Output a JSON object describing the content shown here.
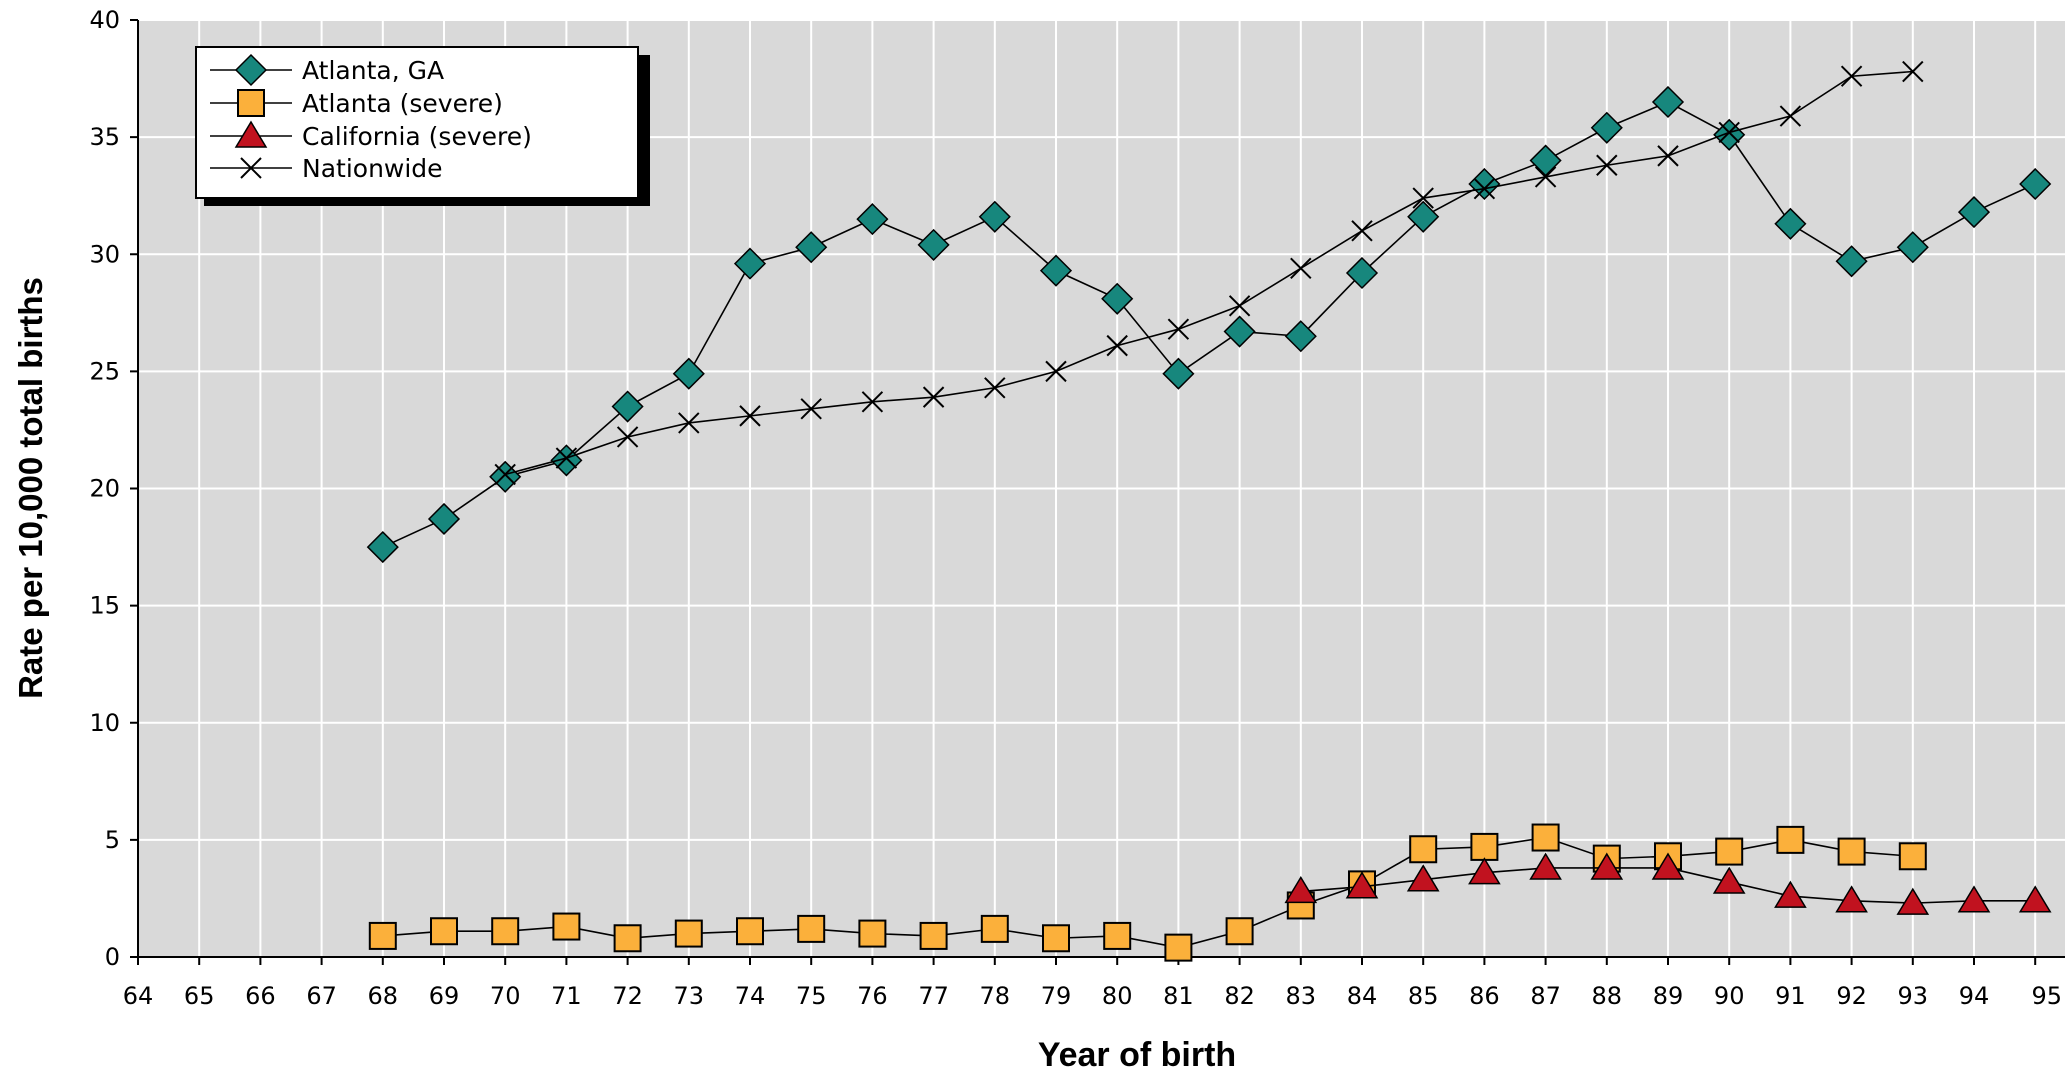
{
  "chart_data": {
    "type": "line",
    "title": "",
    "xlabel": "Year of birth",
    "ylabel": "Rate per 10,000 total births",
    "x_ticks": [
      "64",
      "65",
      "66",
      "67",
      "68",
      "69",
      "70",
      "71",
      "72",
      "73",
      "74",
      "75",
      "76",
      "77",
      "78",
      "79",
      "80",
      "81",
      "82",
      "83",
      "84",
      "85",
      "86",
      "87",
      "88",
      "89",
      "90",
      "91",
      "92",
      "93",
      "94",
      "95"
    ],
    "y_ticks": [
      "0",
      "5",
      "10",
      "15",
      "20",
      "25",
      "30",
      "35",
      "40"
    ],
    "xlim": [
      64,
      95
    ],
    "ylim": [
      0,
      40
    ],
    "grid": true,
    "legend_position": "top-left",
    "series": [
      {
        "name": "Atlanta, GA",
        "marker": "diamond",
        "color": "#17877d",
        "x": [
          68,
          69,
          70,
          71,
          72,
          73,
          74,
          75,
          76,
          77,
          78,
          79,
          80,
          81,
          82,
          83,
          84,
          85,
          86,
          87,
          88,
          89,
          90,
          91,
          92,
          93,
          94,
          95
        ],
        "y": [
          17.5,
          18.7,
          20.5,
          21.2,
          23.5,
          24.9,
          29.6,
          30.3,
          31.5,
          30.4,
          31.6,
          29.3,
          28.1,
          24.9,
          26.7,
          26.5,
          29.2,
          31.6,
          33.0,
          34.0,
          35.4,
          36.5,
          35.1,
          31.3,
          29.7,
          30.3,
          31.8,
          33.0
        ]
      },
      {
        "name": "Atlanta (severe)",
        "marker": "square",
        "color": "#fbb03b",
        "x": [
          68,
          69,
          70,
          71,
          72,
          73,
          74,
          75,
          76,
          77,
          78,
          79,
          80,
          81,
          82,
          83,
          84,
          85,
          86,
          87,
          88,
          89,
          90,
          91,
          92,
          93
        ],
        "y": [
          0.9,
          1.1,
          1.1,
          1.3,
          0.8,
          1.0,
          1.1,
          1.2,
          1.0,
          0.9,
          1.2,
          0.8,
          0.9,
          0.4,
          1.1,
          2.2,
          3.1,
          4.6,
          4.7,
          5.1,
          4.2,
          4.3,
          4.5,
          5.0,
          4.5,
          4.3
        ]
      },
      {
        "name": "California (severe)",
        "marker": "triangle",
        "color": "#c1121f",
        "x": [
          83,
          84,
          85,
          86,
          87,
          88,
          89,
          90,
          91,
          92,
          93,
          94,
          95
        ],
        "y": [
          2.8,
          3.0,
          3.3,
          3.6,
          3.8,
          3.8,
          3.8,
          3.2,
          2.6,
          2.4,
          2.3,
          2.4,
          2.4
        ]
      },
      {
        "name": "Nationwide",
        "marker": "x",
        "color": "#000000",
        "x": [
          70,
          71,
          72,
          73,
          74,
          75,
          76,
          77,
          78,
          79,
          80,
          81,
          82,
          83,
          84,
          85,
          86,
          87,
          88,
          89,
          90,
          91,
          92,
          93
        ],
        "y": [
          20.6,
          21.3,
          22.2,
          22.8,
          23.1,
          23.4,
          23.7,
          23.9,
          24.3,
          25.0,
          26.1,
          26.8,
          27.8,
          29.4,
          31.0,
          32.4,
          32.8,
          33.3,
          33.8,
          34.2,
          35.2,
          35.9,
          37.6,
          37.8
        ]
      }
    ]
  }
}
